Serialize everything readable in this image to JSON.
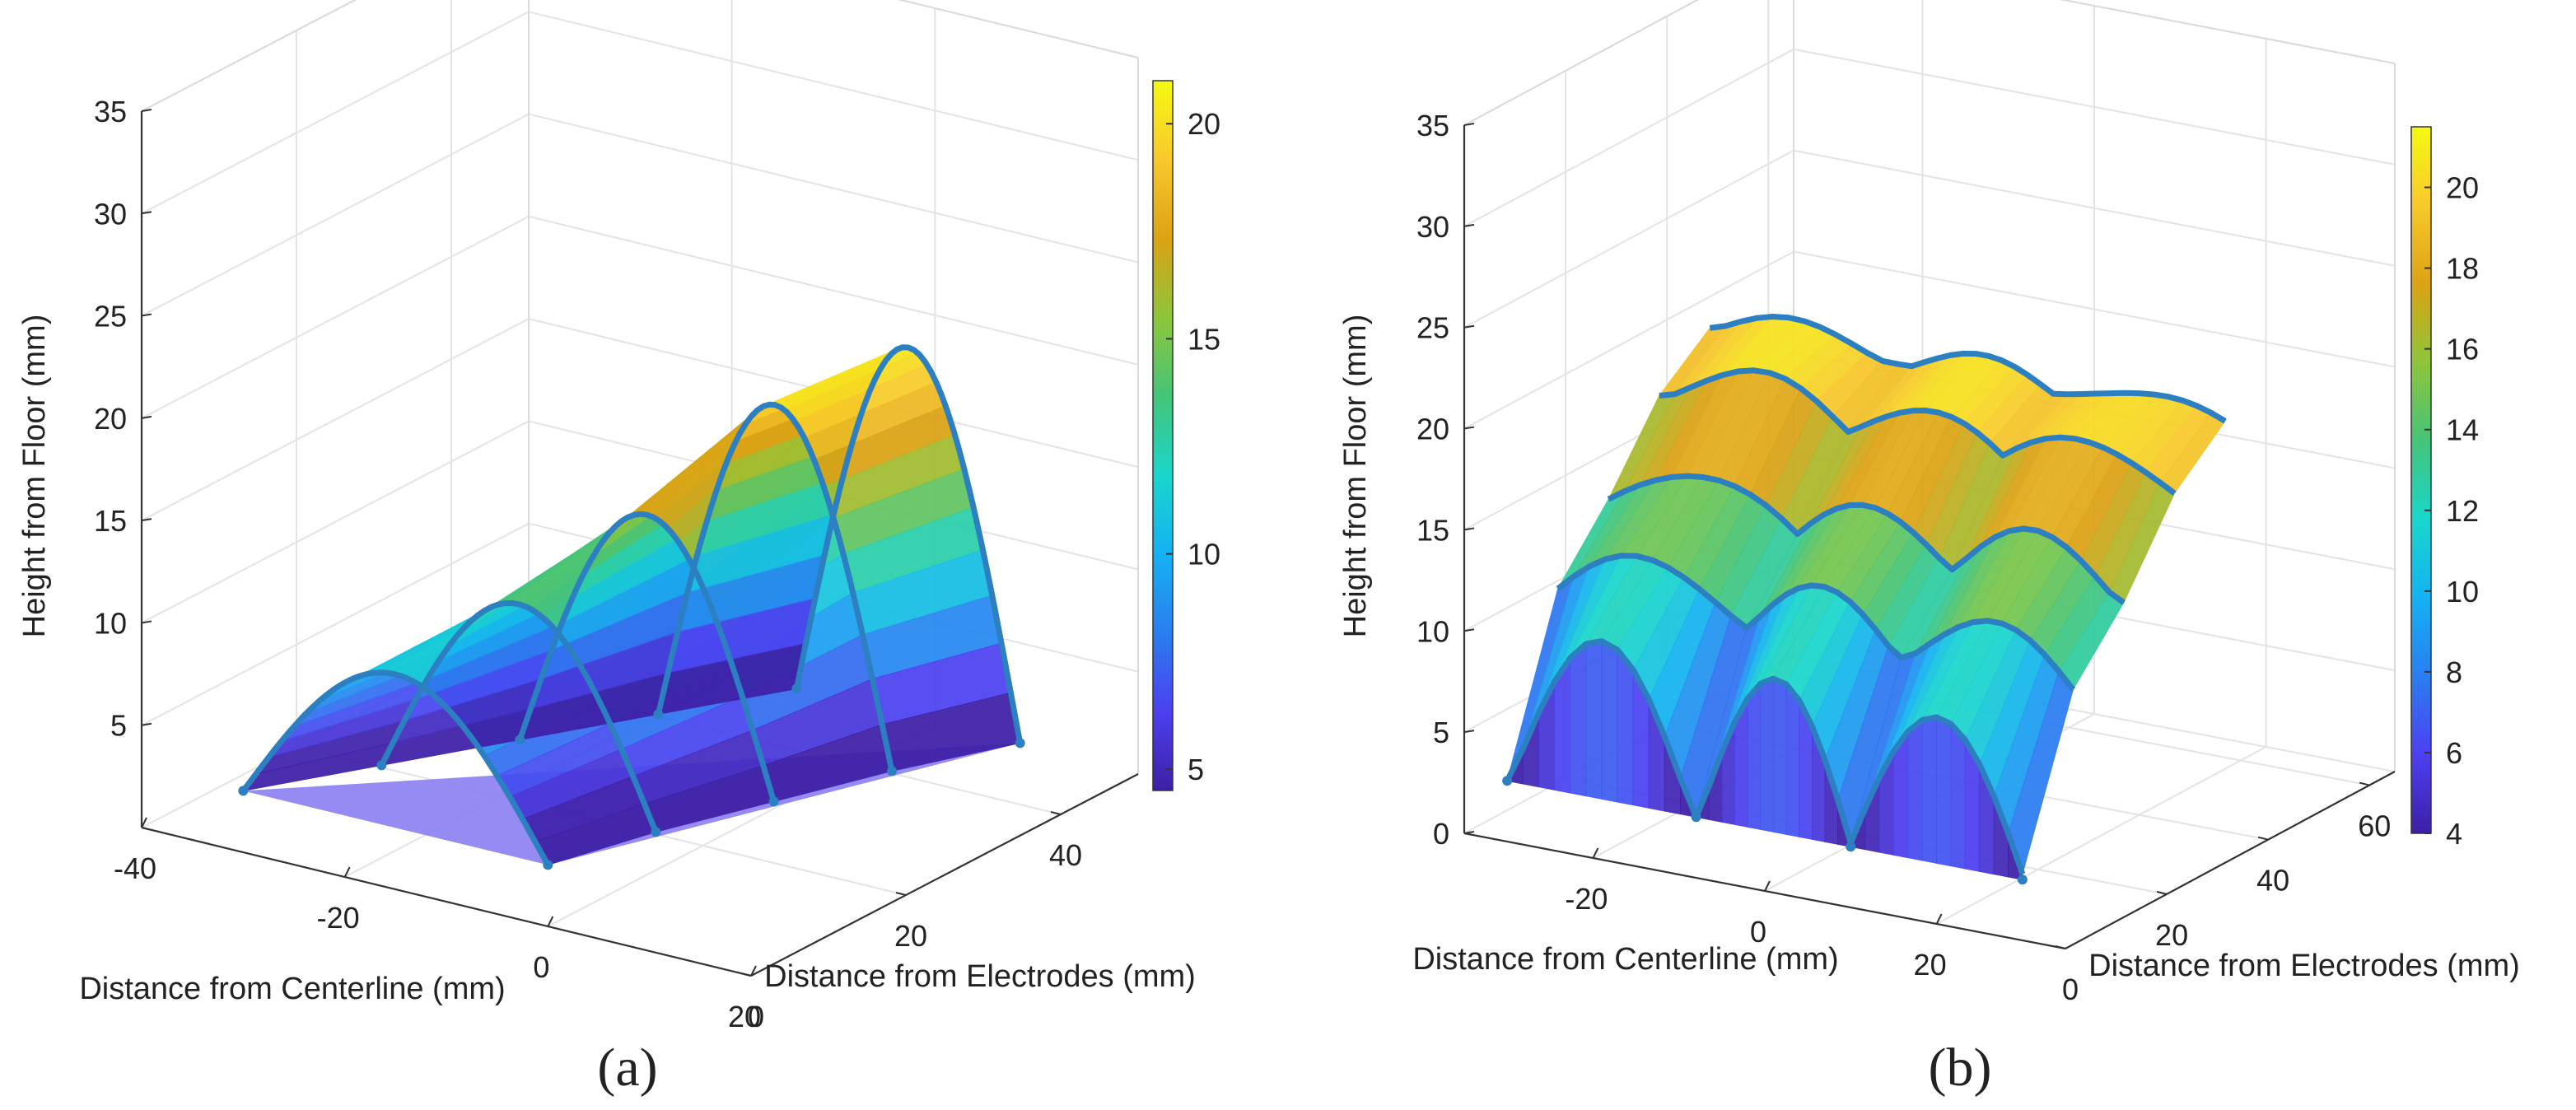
{
  "chart_data": [
    {
      "id": "a",
      "type": "3d-surface",
      "panel_label": "(a)",
      "xlabel": "Distance from Centerline (mm)",
      "ylabel": "Distance from Electrodes (mm)",
      "zlabel": "Height from Floor (mm)",
      "x_ticks": [
        "-40",
        "-20",
        "0",
        "20"
      ],
      "y_ticks": [
        "0",
        "20",
        "40"
      ],
      "z_ticks": [
        "5",
        "10",
        "15",
        "20",
        "25",
        "30",
        "35"
      ],
      "xlim": [
        -40,
        20
      ],
      "ylim": [
        0,
        50
      ],
      "zlim": [
        0,
        35
      ],
      "colorbar_ticks": [
        "5",
        "10",
        "15",
        "20"
      ],
      "colorbar_range": [
        4.5,
        21
      ],
      "colormap": [
        "#3e1fa6",
        "#4c40f0",
        "#2a7ef0",
        "#14b2f2",
        "#19d6cc",
        "#44c478",
        "#8ec53a",
        "#dca214",
        "#f8c82c",
        "#f5f912"
      ],
      "arches": [
        {
          "y": 0,
          "x_start": -30,
          "x_end": 0,
          "peak": 10.5
        },
        {
          "y": 10,
          "x_start": -24,
          "x_end": 3,
          "peak": 12.5
        },
        {
          "y": 20,
          "x_start": -18,
          "x_end": 7,
          "peak": 15.5
        },
        {
          "y": 30,
          "x_start": -12,
          "x_end": 11,
          "peak": 19.5
        },
        {
          "y": 40,
          "x_start": -6,
          "x_end": 16,
          "peak": 21
        }
      ]
    },
    {
      "id": "b",
      "type": "3d-surface",
      "panel_label": "(b)",
      "xlabel": "Distance from Centerline (mm)",
      "ylabel": "Distance from Electrodes (mm)",
      "zlabel": "Height from Floor (mm)",
      "x_ticks": [
        "-20",
        "0",
        "20"
      ],
      "y_ticks": [
        "0",
        "20",
        "40",
        "60"
      ],
      "z_ticks": [
        "0",
        "5",
        "10",
        "15",
        "20",
        "25",
        "30",
        "35"
      ],
      "xlim": [
        -35,
        35
      ],
      "ylim": [
        0,
        65
      ],
      "zlim": [
        0,
        35
      ],
      "colorbar_ticks": [
        "4",
        "6",
        "8",
        "10",
        "12",
        "14",
        "16",
        "18",
        "20"
      ],
      "colorbar_range": [
        4,
        21.5
      ],
      "colormap": [
        "#3e1fa6",
        "#4c40f0",
        "#2a7ef0",
        "#14b2f2",
        "#19d6cc",
        "#44c478",
        "#8ec53a",
        "#dca214",
        "#f8c82c",
        "#f5f912"
      ],
      "channel_x_edges": [
        -30,
        -8,
        10,
        30
      ],
      "rows": [
        {
          "y": 0,
          "peak": 10.5,
          "floor": 3
        },
        {
          "y": 10,
          "peak": 13.5,
          "floor": 11
        },
        {
          "y": 20,
          "peak": 16.5,
          "floor": 14
        },
        {
          "y": 30,
          "peak": 20,
          "floor": 18
        },
        {
          "y": 40,
          "peak": 21,
          "floor": 20
        }
      ]
    }
  ]
}
